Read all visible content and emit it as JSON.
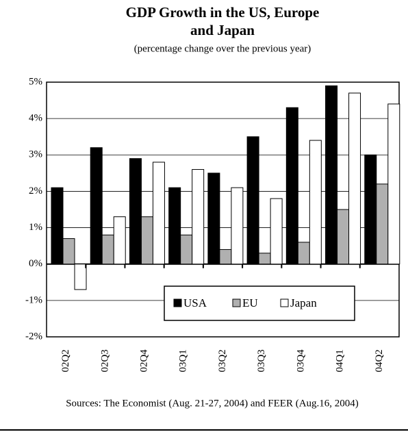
{
  "chart_data": {
    "type": "bar",
    "title": [
      "GDP Growth in the US, Europe",
      "and Japan"
    ],
    "subtitle": "(percentage change over the previous year)",
    "source": "Sources: The Economist (Aug. 21-27, 2004) and FEER (Aug.16, 2004)",
    "categories": [
      "02Q2",
      "02Q3",
      "02Q4",
      "03Q1",
      "03Q2",
      "03Q3",
      "03Q4",
      "04Q1",
      "04Q2"
    ],
    "series": [
      {
        "name": "USA",
        "color": "#000000",
        "values": [
          2.1,
          3.2,
          2.9,
          2.1,
          2.5,
          3.5,
          4.3,
          4.9,
          3.0
        ]
      },
      {
        "name": "EU",
        "color": "#b0b0b0",
        "values": [
          0.7,
          0.8,
          1.3,
          0.8,
          0.4,
          0.3,
          0.6,
          1.5,
          2.2
        ]
      },
      {
        "name": "Japan",
        "color": "#ffffff",
        "values": [
          -0.7,
          1.3,
          2.8,
          2.6,
          2.1,
          1.8,
          3.4,
          4.7,
          4.4
        ]
      }
    ],
    "ylim": [
      -2,
      5
    ],
    "yticks": [
      {
        "value": -2,
        "label": "-2%"
      },
      {
        "value": -1,
        "label": "-1%"
      },
      {
        "value": 0,
        "label": "0%"
      },
      {
        "value": 1,
        "label": "1%"
      },
      {
        "value": 2,
        "label": "2%"
      },
      {
        "value": 3,
        "label": "3%"
      },
      {
        "value": 4,
        "label": "4%"
      },
      {
        "value": 5,
        "label": "5%"
      }
    ],
    "grid": true,
    "legend": "bottom"
  }
}
